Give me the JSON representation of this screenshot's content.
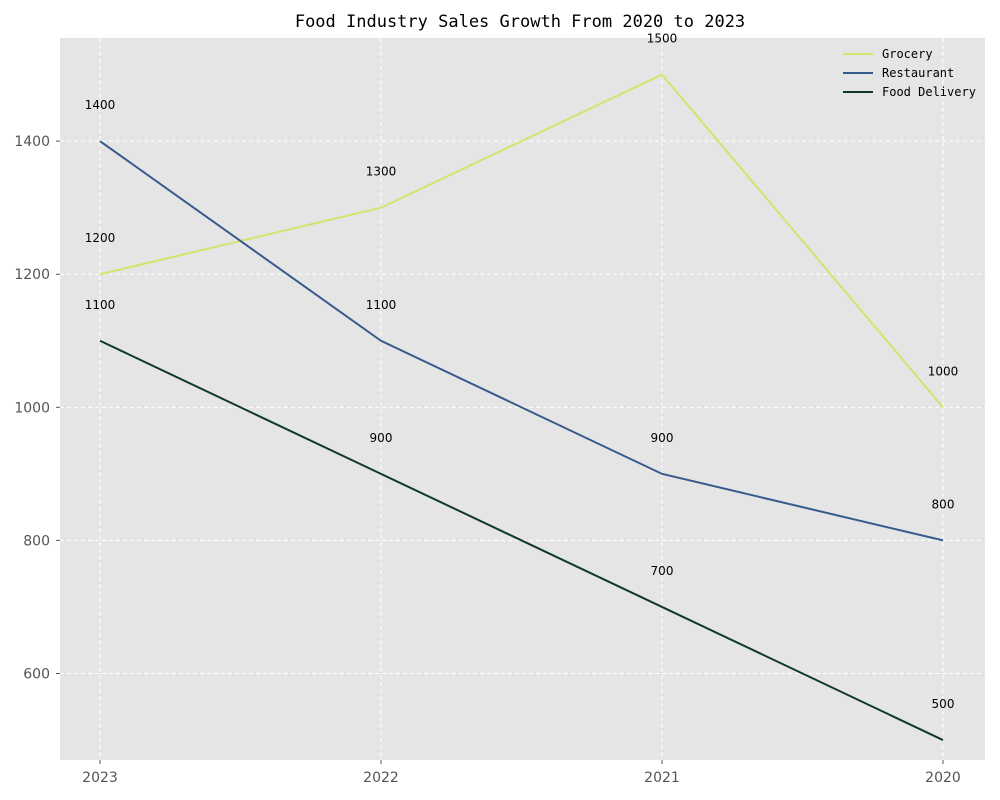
{
  "chart_data": {
    "type": "line",
    "title": "Food Industry Sales Growth From 2020 to 2023",
    "xlabel": "",
    "ylabel": "",
    "categories": [
      "2023",
      "2022",
      "2021",
      "2020"
    ],
    "ylim": [
      470,
      1555
    ],
    "yticks": [
      600,
      800,
      1000,
      1200,
      1400
    ],
    "grid": true,
    "legend_position": "top-right",
    "series": [
      {
        "name": "Grocery",
        "values": [
          1200,
          1300,
          1500,
          1000
        ],
        "color": "#d4e36b"
      },
      {
        "name": "Restaurant",
        "values": [
          1400,
          1100,
          900,
          800
        ],
        "color": "#375a8c"
      },
      {
        "name": "Food Delivery",
        "values": [
          1100,
          900,
          700,
          500
        ],
        "color": "#0f3a24"
      }
    ],
    "plot_background": "#e5e5e5"
  }
}
